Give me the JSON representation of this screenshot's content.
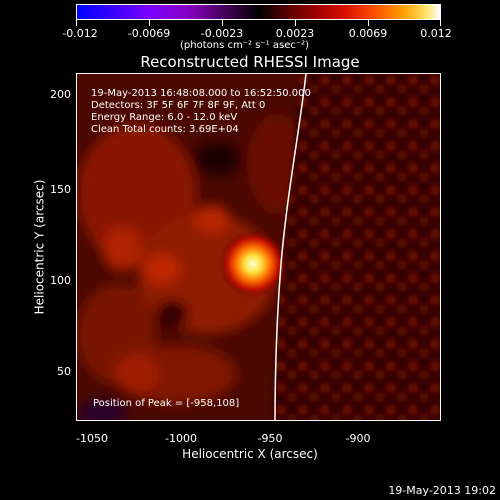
{
  "colorbar": {
    "tick_labels": [
      "-0.012",
      "-0.0069",
      "-0.0023",
      "0.0023",
      "0.0069",
      "0.012"
    ],
    "units": "(photons cm⁻² s⁻¹ asec⁻²)"
  },
  "plot": {
    "title": "Reconstructed RHESSI Image",
    "info_lines": [
      "19-May-2013 16:48:08.000 to 16:52:50.000",
      "Detectors: 3F 5F 6F 7F 8F 9F, Att 0",
      "Energy Range: 6.0 - 12.0 keV",
      "Clean    Total counts: 3.69E+04"
    ],
    "peak_text": "Position of Peak = [-958,108]",
    "yaxis_title": "Heliocentric Y (arcsec)",
    "xaxis_title": "Heliocentric X (arcsec)",
    "y_tick_labels": [
      "200",
      "150",
      "100",
      "50"
    ],
    "x_tick_labels": [
      "-1050",
      "-1000",
      "-950",
      "-900"
    ]
  },
  "footer": {
    "timestamp": "19-May-2013 19:02"
  },
  "colors": {
    "background": "#000000",
    "limb_line": "#ffffff",
    "hot_peak": "#ffff80"
  }
}
